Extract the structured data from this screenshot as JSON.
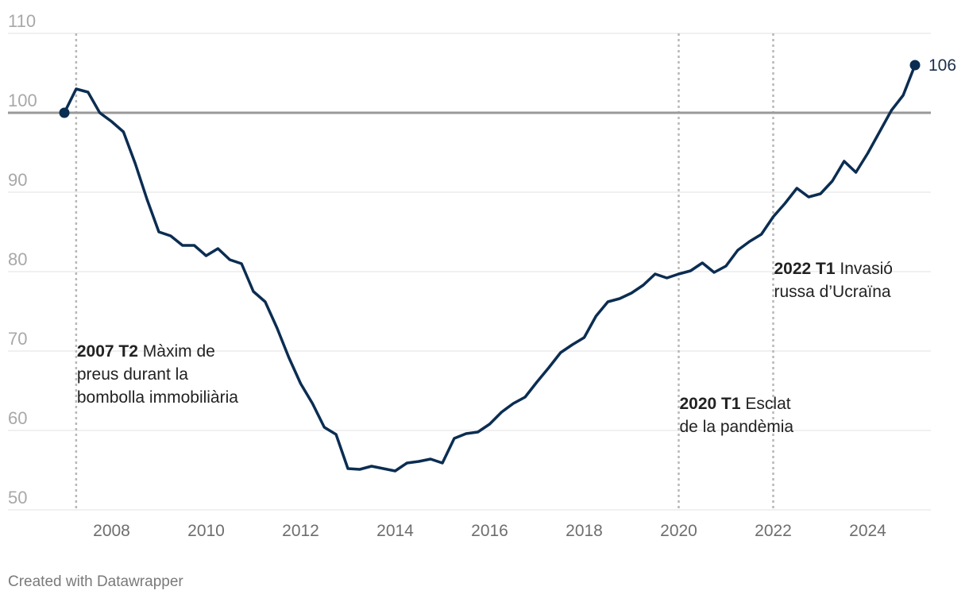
{
  "colors": {
    "line": "#0b2d52",
    "baseline": "#9a9a9a",
    "grid": "#e2e2e2",
    "event_line": "#b8b8b8"
  },
  "chart_data": {
    "type": "line",
    "ylim": [
      50,
      110
    ],
    "yticks": [
      50,
      60,
      70,
      80,
      90,
      100,
      110
    ],
    "xticks": [
      "2008",
      "2010",
      "2012",
      "2014",
      "2016",
      "2018",
      "2020",
      "2022",
      "2024"
    ],
    "x_range": [
      2006.65,
      2025.4
    ],
    "grid": true,
    "reference_line": 100,
    "series": [
      {
        "x": [
          2007.0,
          2007.25,
          2007.5,
          2007.75,
          2008.0,
          2008.25,
          2008.5,
          2008.75,
          2009.0,
          2009.25,
          2009.5,
          2009.75,
          2010.0,
          2010.25,
          2010.5,
          2010.75,
          2011.0,
          2011.25,
          2011.5,
          2011.75,
          2012.0,
          2012.25,
          2012.5,
          2012.75,
          2013.0,
          2013.25,
          2013.5,
          2013.75,
          2014.0,
          2014.25,
          2014.5,
          2014.75,
          2015.0,
          2015.25,
          2015.5,
          2015.75,
          2016.0,
          2016.25,
          2016.5,
          2016.75,
          2017.0,
          2017.25,
          2017.5,
          2017.75,
          2018.0,
          2018.25,
          2018.5,
          2018.75,
          2019.0,
          2019.25,
          2019.5,
          2019.75,
          2020.0,
          2020.25,
          2020.5,
          2020.75,
          2021.0,
          2021.25,
          2021.5,
          2021.75,
          2022.0,
          2022.25,
          2022.5,
          2022.75,
          2023.0,
          2023.25,
          2023.5,
          2023.75,
          2024.0,
          2024.25,
          2024.5,
          2024.75,
          2025.0
        ],
        "values": [
          100.0,
          103.0,
          102.6,
          100.0,
          98.9,
          97.6,
          93.6,
          89.1,
          85.0,
          84.5,
          83.3,
          83.3,
          82.0,
          82.9,
          81.5,
          81.0,
          77.5,
          76.2,
          72.9,
          69.2,
          65.9,
          63.4,
          60.4,
          59.5,
          55.2,
          55.1,
          55.5,
          55.2,
          54.9,
          55.9,
          56.1,
          56.4,
          55.9,
          59.0,
          59.6,
          59.8,
          60.8,
          62.3,
          63.4,
          64.2,
          66.1,
          67.9,
          69.8,
          70.8,
          71.7,
          74.4,
          76.2,
          76.6,
          77.3,
          78.3,
          79.7,
          79.2,
          79.7,
          80.1,
          81.1,
          79.9,
          80.7,
          82.7,
          83.8,
          84.7,
          86.9,
          88.6,
          90.5,
          89.4,
          89.8,
          91.4,
          93.9,
          92.5,
          94.9,
          97.6,
          100.3,
          102.2,
          106.0
        ]
      }
    ],
    "end_label": "106",
    "annotations": [
      {
        "x": 2007.25,
        "bold": "2007 T2",
        "lines": [
          "Màxim de",
          "preus durant la",
          "bombolla immobiliària"
        ]
      },
      {
        "x": 2020.0,
        "bold": "2020 T1",
        "lines": [
          "Esclat",
          "de la pandèmia"
        ]
      },
      {
        "x": 2022.0,
        "bold": "2022 T1",
        "lines": [
          "Invasió",
          "russa d’Ucraïna"
        ]
      }
    ]
  },
  "footer": "Created with Datawrapper"
}
